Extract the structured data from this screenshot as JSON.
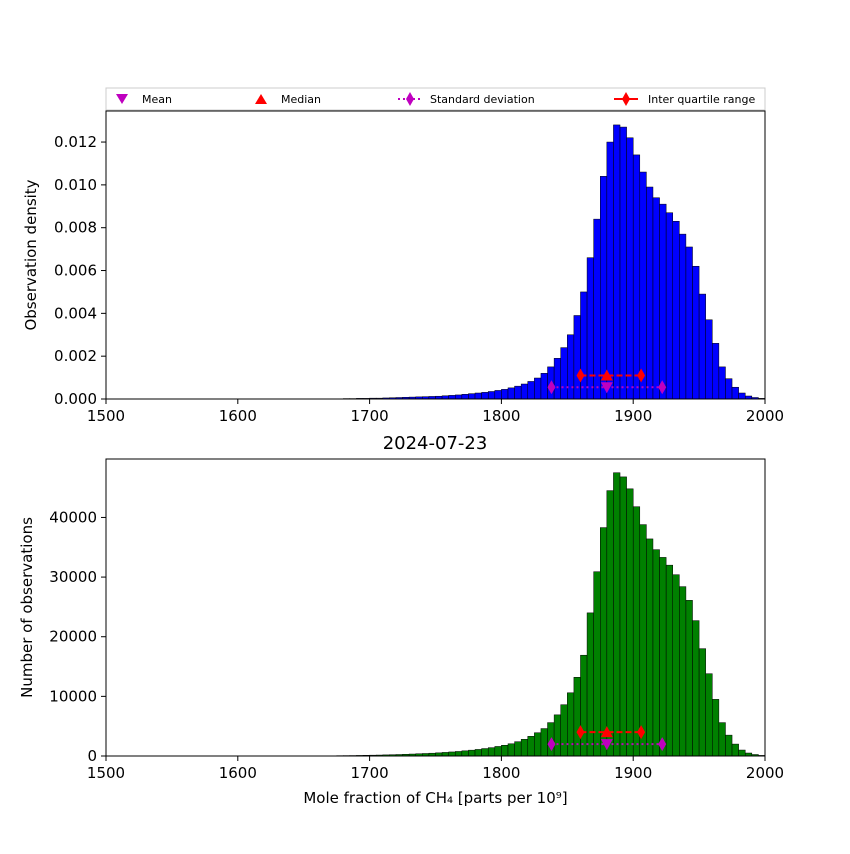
{
  "legend": {
    "items": [
      {
        "label": "Mean",
        "marker": "triangle-down",
        "color": "#bf00bf"
      },
      {
        "label": "Median",
        "marker": "triangle-up",
        "color": "#ff0000"
      },
      {
        "label": "Standard deviation",
        "marker": "diamond",
        "color": "#bf00bf"
      },
      {
        "label": "Inter quartile range",
        "marker": "diamond",
        "color": "#ff0000"
      }
    ]
  },
  "chart_data": [
    {
      "type": "bar",
      "title": "",
      "ylabel": "Observation density",
      "xlabel": "",
      "xlim": [
        1500,
        2000
      ],
      "ylim": [
        0,
        0.01345
      ],
      "x_ticks": [
        1500,
        1600,
        1700,
        1800,
        1900,
        2000
      ],
      "y_ticks": [
        0,
        0.002,
        0.004,
        0.006,
        0.008,
        0.01,
        0.012
      ],
      "y_tick_labels": [
        "0.000",
        "0.002",
        "0.004",
        "0.006",
        "0.008",
        "0.010",
        "0.012"
      ],
      "bar_color": "#0000ff",
      "bin_width": 5,
      "bin_start": 1665,
      "values": [
        1e-05,
        1e-05,
        1e-05,
        2e-05,
        2e-05,
        3e-05,
        3e-05,
        4e-05,
        4e-05,
        5e-05,
        6e-05,
        7e-05,
        8e-05,
        9e-05,
        0.0001,
        0.00011,
        0.00012,
        0.00013,
        0.00015,
        0.00017,
        0.00019,
        0.00022,
        0.00025,
        0.00028,
        0.00031,
        0.00035,
        0.0004,
        0.00045,
        0.00052,
        0.0006,
        0.0007,
        0.00082,
        0.00098,
        0.0012,
        0.0015,
        0.0019,
        0.0024,
        0.003,
        0.0039,
        0.005,
        0.0066,
        0.0084,
        0.0104,
        0.012,
        0.0128,
        0.0127,
        0.0122,
        0.0114,
        0.0106,
        0.0099,
        0.0094,
        0.0091,
        0.0087,
        0.0083,
        0.0077,
        0.0071,
        0.0062,
        0.0049,
        0.0037,
        0.0026,
        0.0015,
        0.00095,
        0.00055,
        0.00028,
        0.00014,
        7e-05,
        3e-05
      ],
      "stats": {
        "mean": {
          "x": 1880,
          "y": 0.00055
        },
        "median": {
          "x": 1880,
          "y": 0.0011
        },
        "std": {
          "x": [
            1838,
            1922
          ],
          "y": 0.00055
        },
        "iqr": {
          "x": [
            1860,
            1906
          ],
          "y": 0.0011
        }
      }
    },
    {
      "type": "bar",
      "title": "2024-07-23",
      "ylabel": "Number of observations",
      "xlabel": "Mole fraction of CH₄ [parts per 10⁹]",
      "xlim": [
        1500,
        2000
      ],
      "ylim": [
        0,
        49800
      ],
      "x_ticks": [
        1500,
        1600,
        1700,
        1800,
        1900,
        2000
      ],
      "y_ticks": [
        0,
        10000,
        20000,
        30000,
        40000
      ],
      "y_tick_labels": [
        "0",
        "10000",
        "20000",
        "30000",
        "40000"
      ],
      "bar_color": "#008000",
      "bin_width": 5,
      "bin_start": 1665,
      "values": [
        40,
        40,
        60,
        70,
        80,
        100,
        120,
        140,
        160,
        190,
        220,
        250,
        290,
        330,
        380,
        420,
        470,
        530,
        600,
        680,
        760,
        870,
        980,
        1100,
        1250,
        1400,
        1600,
        1800,
        2050,
        2400,
        2800,
        3300,
        3900,
        4600,
        5600,
        6900,
        8600,
        10600,
        13200,
        16900,
        24000,
        30900,
        38300,
        44500,
        47500,
        46800,
        44800,
        41800,
        38800,
        36400,
        34600,
        33300,
        32000,
        30400,
        28400,
        26100,
        22700,
        18000,
        13800,
        9500,
        5600,
        3500,
        2000,
        1000,
        500,
        250,
        100
      ],
      "stats": {
        "mean": {
          "x": 1880,
          "y": 2000
        },
        "median": {
          "x": 1880,
          "y": 4000
        },
        "std": {
          "x": [
            1838,
            1922
          ],
          "y": 2000
        },
        "iqr": {
          "x": [
            1860,
            1906
          ],
          "y": 4000
        }
      }
    }
  ]
}
